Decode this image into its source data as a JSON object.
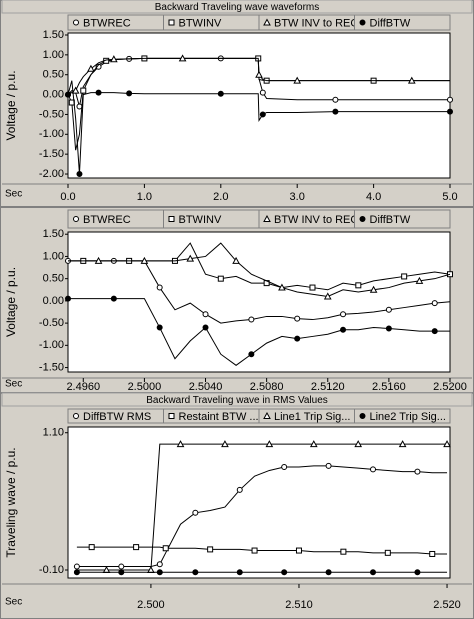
{
  "chart_data": [
    {
      "type": "line",
      "title": "Backward Traveling wave waveforms",
      "ylabel": "Voltage / p.u.",
      "xlabel": "Sec",
      "x": [
        0,
        0.05,
        0.1,
        0.15,
        0.2,
        0.3,
        0.4,
        0.5,
        0.6,
        0.8,
        1.0,
        1.5,
        2.0,
        2.49,
        2.5,
        2.55,
        2.6,
        3.0,
        3.5,
        4.0,
        4.5,
        5.0
      ],
      "series": [
        {
          "name": "BTWREC",
          "marker": "circle",
          "color": "#000000",
          "values": [
            0,
            0.1,
            0.05,
            -0.3,
            0.2,
            0.5,
            0.7,
            0.82,
            0.88,
            0.9,
            0.91,
            0.91,
            0.91,
            0.91,
            0.4,
            0.05,
            -0.1,
            -0.13,
            -0.13,
            -0.13,
            -0.13,
            -0.13
          ]
        },
        {
          "name": "BTWINV",
          "marker": "square",
          "color": "#000000",
          "values": [
            0,
            -0.2,
            -1.4,
            -1.0,
            0.1,
            0.5,
            0.75,
            0.85,
            0.88,
            0.9,
            0.91,
            0.91,
            0.91,
            0.91,
            0.38,
            0.36,
            0.35,
            0.35,
            0.35,
            0.35,
            0.35,
            0.35
          ]
        },
        {
          "name": "BTW INV to REC",
          "marker": "triangle",
          "color": "#000000",
          "values": [
            0,
            0.05,
            0.1,
            0.3,
            0.45,
            0.65,
            0.8,
            0.87,
            0.89,
            0.9,
            0.91,
            0.91,
            0.91,
            0.91,
            0.5,
            0.38,
            0.35,
            0.35,
            0.35,
            0.35,
            0.35,
            0.35
          ]
        },
        {
          "name": "DiffBTW",
          "marker": "dot",
          "color": "#000000",
          "values": [
            0,
            0.35,
            -0.6,
            -2.0,
            0.0,
            0.05,
            0.05,
            0.05,
            0.05,
            0.03,
            0.02,
            0.02,
            0.02,
            0.02,
            -0.65,
            -0.5,
            -0.45,
            -0.45,
            -0.43,
            -0.43,
            -0.43,
            -0.43
          ]
        }
      ],
      "xlim": [
        0,
        5
      ],
      "ylim": [
        -2.1,
        1.55
      ],
      "xticks": [
        {
          "value": 0,
          "label": "0.0"
        },
        {
          "value": 1,
          "label": "1.0"
        },
        {
          "value": 2,
          "label": "2.0"
        },
        {
          "value": 3,
          "label": "3.0"
        },
        {
          "value": 4,
          "label": "4.0"
        },
        {
          "value": 5,
          "label": "5.0"
        }
      ],
      "yticks": [
        {
          "value": 1.5,
          "label": "1.50"
        },
        {
          "value": 1,
          "label": "1.00"
        },
        {
          "value": 0.5,
          "label": "0.50"
        },
        {
          "value": 0,
          "label": "0.00"
        },
        {
          "value": -0.5,
          "label": "-0.50"
        },
        {
          "value": -1,
          "label": "-1.00"
        },
        {
          "value": -1.5,
          "label": "-1.50"
        },
        {
          "value": -2,
          "label": "-2.00"
        }
      ],
      "grid": false
    },
    {
      "type": "line",
      "ylabel": "Voltage / p.u.",
      "xlabel": "Sec",
      "x": [
        2.495,
        2.496,
        2.497,
        2.498,
        2.499,
        2.5,
        2.501,
        2.502,
        2.503,
        2.504,
        2.505,
        2.506,
        2.507,
        2.508,
        2.509,
        2.51,
        2.511,
        2.512,
        2.513,
        2.514,
        2.515,
        2.516,
        2.517,
        2.518,
        2.519,
        2.52
      ],
      "series": [
        {
          "name": "BTWREC",
          "marker": "circle",
          "color": "#000000",
          "values": [
            0.9,
            0.9,
            0.9,
            0.9,
            0.9,
            0.9,
            0.3,
            -0.2,
            -0.05,
            -0.3,
            -0.5,
            -0.45,
            -0.42,
            -0.35,
            -0.35,
            -0.4,
            -0.42,
            -0.38,
            -0.3,
            -0.28,
            -0.25,
            -0.2,
            -0.15,
            -0.1,
            -0.05,
            -0.02
          ]
        },
        {
          "name": "BTWINV",
          "marker": "square",
          "color": "#000000",
          "values": [
            0.9,
            0.9,
            0.9,
            0.9,
            0.9,
            0.9,
            0.9,
            0.9,
            1.3,
            0.6,
            0.5,
            0.55,
            0.4,
            0.4,
            0.3,
            0.35,
            0.3,
            0.25,
            0.4,
            0.35,
            0.45,
            0.5,
            0.55,
            0.6,
            0.65,
            0.6
          ]
        },
        {
          "name": "BTW INV to REC",
          "marker": "triangle",
          "color": "#000000",
          "values": [
            0.9,
            0.9,
            0.9,
            0.9,
            0.9,
            0.9,
            0.9,
            0.9,
            0.95,
            1.0,
            1.3,
            0.9,
            0.6,
            0.45,
            0.3,
            0.2,
            0.15,
            0.1,
            0.25,
            0.2,
            0.25,
            0.3,
            0.4,
            0.45,
            0.5,
            0.6
          ]
        },
        {
          "name": "DiffBTW",
          "marker": "dot",
          "color": "#000000",
          "values": [
            0.05,
            0.05,
            0.05,
            0.05,
            0.05,
            0.05,
            -0.6,
            -1.3,
            -0.9,
            -0.6,
            -1.2,
            -1.45,
            -1.2,
            -0.95,
            -0.8,
            -0.85,
            -0.8,
            -0.75,
            -0.65,
            -0.65,
            -0.6,
            -0.62,
            -0.65,
            -0.68,
            -0.68,
            -0.68
          ]
        }
      ],
      "xlim": [
        2.495,
        2.52
      ],
      "ylim": [
        -1.6,
        1.55
      ],
      "xticks": [
        {
          "value": 2.496,
          "label": "2.4960"
        },
        {
          "value": 2.5,
          "label": "2.5000"
        },
        {
          "value": 2.504,
          "label": "2.5040"
        },
        {
          "value": 2.508,
          "label": "2.5080"
        },
        {
          "value": 2.512,
          "label": "2.5120"
        },
        {
          "value": 2.516,
          "label": "2.5160"
        },
        {
          "value": 2.52,
          "label": "2.5200"
        }
      ],
      "yticks": [
        {
          "value": 1.5,
          "label": "1.50"
        },
        {
          "value": 1,
          "label": "1.00"
        },
        {
          "value": 0.5,
          "label": "0.50"
        },
        {
          "value": 0,
          "label": "0.00"
        },
        {
          "value": -0.5,
          "label": "-0.50"
        },
        {
          "value": -1,
          "label": "-1.00"
        },
        {
          "value": -1.5,
          "label": "-1.50"
        }
      ],
      "grid": false
    },
    {
      "type": "line",
      "title": "Backward Traveling wave in RMS Values",
      "ylabel": "Traveling wave / p.u.",
      "xlabel": "Sec",
      "x": [
        2.495,
        2.496,
        2.497,
        2.498,
        2.499,
        2.5,
        2.5006,
        2.501,
        2.502,
        2.503,
        2.504,
        2.505,
        2.506,
        2.507,
        2.508,
        2.509,
        2.51,
        2.511,
        2.512,
        2.513,
        2.514,
        2.515,
        2.516,
        2.517,
        2.518,
        2.519,
        2.52
      ],
      "series": [
        {
          "name": "DiffBTW RMS",
          "marker": "circle",
          "color": "#000000",
          "values": [
            -0.07,
            -0.07,
            -0.07,
            -0.07,
            -0.07,
            -0.07,
            -0.05,
            0.05,
            0.3,
            0.4,
            0.42,
            0.45,
            0.6,
            0.72,
            0.77,
            0.8,
            0.8,
            0.81,
            0.81,
            0.8,
            0.79,
            0.78,
            0.77,
            0.76,
            0.76,
            0.75,
            0.75
          ]
        },
        {
          "name": "Restaint BTW ...",
          "marker": "square",
          "color": "#000000",
          "values": [
            0.1,
            0.1,
            0.1,
            0.1,
            0.1,
            0.1,
            0.1,
            0.09,
            0.09,
            0.09,
            0.08,
            0.08,
            0.08,
            0.07,
            0.07,
            0.07,
            0.07,
            0.06,
            0.06,
            0.06,
            0.06,
            0.05,
            0.05,
            0.05,
            0.05,
            0.04,
            0.04
          ]
        },
        {
          "name": "Line1 Trip Sig...",
          "marker": "triangle",
          "color": "#000000",
          "values": [
            -0.1,
            -0.1,
            -0.1,
            -0.1,
            -0.1,
            -0.1,
            1.0,
            1.0,
            1.0,
            1.0,
            1.0,
            1.0,
            1.0,
            1.0,
            1.0,
            1.0,
            1.0,
            1.0,
            1.0,
            1.0,
            1.0,
            1.0,
            1.0,
            1.0,
            1.0,
            1.0,
            1.0
          ]
        },
        {
          "name": "Line2 Trip Sig...",
          "marker": "dot",
          "color": "#000000",
          "values": [
            -0.12,
            -0.12,
            -0.12,
            -0.12,
            -0.12,
            -0.12,
            -0.12,
            -0.12,
            -0.12,
            -0.12,
            -0.12,
            -0.12,
            -0.12,
            -0.12,
            -0.12,
            -0.12,
            -0.12,
            -0.12,
            -0.12,
            -0.12,
            -0.12,
            -0.12,
            -0.12,
            -0.12,
            -0.12,
            -0.12,
            -0.12
          ]
        }
      ],
      "xlim": [
        2.4944,
        2.5202
      ],
      "ylim": [
        -0.17,
        1.15
      ],
      "xticks": [
        {
          "value": 2.5,
          "label": "2.500"
        },
        {
          "value": 2.51,
          "label": "2.510"
        },
        {
          "value": 2.52,
          "label": "2.520"
        }
      ],
      "yticks": [
        {
          "value": 1.1,
          "label": "1.10"
        },
        {
          "value": -0.1,
          "label": "-0.10"
        }
      ],
      "grid": false
    }
  ]
}
